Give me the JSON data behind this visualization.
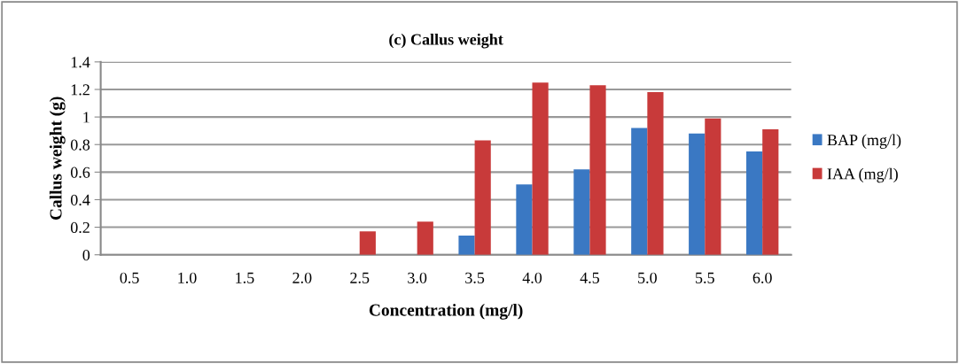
{
  "chart_data": {
    "type": "bar",
    "title": "(c) Callus weight",
    "xlabel": "Concentration (mg/l)",
    "ylabel": "Callus weight (g)",
    "categories": [
      "0.5",
      "1.0",
      "1.5",
      "2.0",
      "2.5",
      "3.0",
      "3.5",
      "4.0",
      "4.5",
      "5.0",
      "5.5",
      "6.0"
    ],
    "series": [
      {
        "name": "BAP (mg/l)",
        "color": "#3a78c3",
        "values": [
          0,
          0,
          0,
          0,
          0,
          0,
          0.14,
          0.51,
          0.62,
          0.92,
          0.88,
          0.75
        ]
      },
      {
        "name": "IAA (mg/l)",
        "color": "#c83a3a",
        "values": [
          0,
          0,
          0,
          0,
          0.17,
          0.24,
          0.83,
          1.25,
          1.23,
          1.18,
          0.99,
          0.91
        ]
      }
    ],
    "ylim": [
      0,
      1.4
    ],
    "yticks": [
      0,
      0.2,
      0.4,
      0.6,
      0.8,
      1,
      1.2,
      1.4
    ],
    "grid": "y",
    "legend": "right"
  }
}
